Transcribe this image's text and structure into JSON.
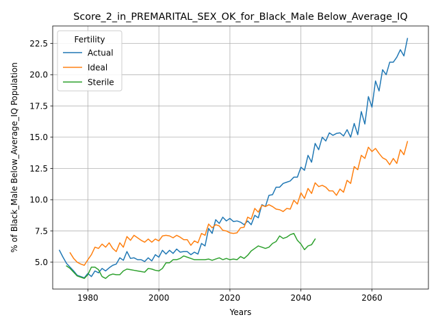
{
  "chart_data": {
    "type": "line",
    "title": "Score_2_in_PREMARITAL_SEX_OK_for_Black_Male Below_Average_IQ",
    "xlabel": "Years",
    "ylabel": "% of Black_Male Below_Average_IQ Population",
    "xlim": [
      1970.1,
      2075.9
    ],
    "ylim": [
      2.85,
      23.9
    ],
    "x_ticks": [
      1980,
      2000,
      2020,
      2040,
      2060
    ],
    "y_ticks": [
      5.0,
      7.5,
      10.0,
      12.5,
      15.0,
      17.5,
      20.0,
      22.5
    ],
    "x_tick_labels": [
      "1980",
      "2000",
      "2020",
      "2040",
      "2060"
    ],
    "y_tick_labels": [
      "5.0",
      "7.5",
      "10.0",
      "12.5",
      "15.0",
      "17.5",
      "20.0",
      "22.5"
    ],
    "grid": true,
    "legend": {
      "title": "Fertility",
      "location": "upper-left"
    },
    "series": [
      {
        "name": "Actual",
        "color": "#1f77b4",
        "x": [
          1972,
          1973,
          1974,
          1975,
          1976,
          1977,
          1978,
          1979,
          1980,
          1981,
          1982,
          1983,
          1984,
          1985,
          1986,
          1987,
          1988,
          1989,
          1990,
          1991,
          1992,
          1993,
          1994,
          1995,
          1996,
          1997,
          1998,
          1999,
          2000,
          2001,
          2002,
          2003,
          2004,
          2005,
          2006,
          2007,
          2008,
          2009,
          2010,
          2011,
          2012,
          2013,
          2014,
          2015,
          2016,
          2017,
          2018,
          2019,
          2020,
          2021,
          2022,
          2023,
          2024,
          2025,
          2026,
          2027,
          2028,
          2029,
          2030,
          2031,
          2032,
          2033,
          2034,
          2035,
          2036,
          2037,
          2038,
          2039,
          2040,
          2041,
          2042,
          2043,
          2044,
          2045,
          2046,
          2047,
          2048,
          2049,
          2050,
          2051,
          2052,
          2053,
          2054,
          2055,
          2056,
          2057,
          2058,
          2059,
          2060,
          2061,
          2062,
          2063,
          2064,
          2065,
          2066,
          2067,
          2068,
          2069,
          2070
        ],
        "values": [
          5.95,
          5.4,
          4.9,
          4.6,
          4.3,
          3.95,
          3.85,
          3.75,
          4.1,
          3.85,
          4.3,
          4.15,
          4.5,
          4.3,
          4.55,
          4.75,
          4.85,
          5.35,
          5.15,
          5.85,
          5.3,
          5.35,
          5.2,
          5.2,
          5.05,
          5.35,
          5.1,
          5.6,
          5.4,
          5.95,
          5.65,
          5.95,
          5.7,
          6.05,
          5.8,
          5.85,
          5.85,
          5.6,
          5.8,
          5.65,
          6.5,
          6.3,
          7.7,
          7.3,
          8.4,
          8.1,
          8.6,
          8.3,
          8.5,
          8.25,
          8.3,
          8.2,
          8.0,
          8.3,
          8.0,
          8.75,
          8.55,
          9.6,
          9.45,
          10.35,
          10.4,
          11.0,
          11.0,
          11.3,
          11.4,
          11.5,
          11.8,
          11.8,
          12.6,
          12.35,
          13.55,
          13.0,
          14.5,
          14.0,
          15.0,
          14.7,
          15.35,
          15.15,
          15.3,
          15.35,
          15.1,
          15.6,
          15.0,
          16.1,
          15.2,
          17.05,
          16.05,
          18.25,
          17.4,
          19.5,
          18.7,
          20.4,
          20.0,
          21.0,
          21.0,
          21.4,
          22.0,
          21.5,
          22.9
        ]
      },
      {
        "name": "Ideal",
        "color": "#ff7f0e",
        "x": [
          1975,
          1976,
          1977,
          1978,
          1979,
          1980,
          1981,
          1982,
          1983,
          1984,
          1985,
          1986,
          1987,
          1988,
          1989,
          1990,
          1991,
          1992,
          1993,
          1994,
          1995,
          1996,
          1997,
          1998,
          1999,
          2000,
          2001,
          2002,
          2003,
          2004,
          2005,
          2006,
          2007,
          2008,
          2009,
          2010,
          2011,
          2012,
          2013,
          2014,
          2015,
          2016,
          2017,
          2018,
          2019,
          2020,
          2021,
          2022,
          2023,
          2024,
          2025,
          2026,
          2027,
          2028,
          2029,
          2030,
          2031,
          2032,
          2033,
          2034,
          2035,
          2036,
          2037,
          2038,
          2039,
          2040,
          2041,
          2042,
          2043,
          2044,
          2045,
          2046,
          2047,
          2048,
          2049,
          2050,
          2051,
          2052,
          2053,
          2054,
          2055,
          2056,
          2057,
          2058,
          2059,
          2060,
          2061,
          2062,
          2063,
          2064,
          2065,
          2066,
          2067,
          2068,
          2069,
          2070
        ],
        "values": [
          5.75,
          5.3,
          5.0,
          4.85,
          4.75,
          5.2,
          5.6,
          6.2,
          6.1,
          6.45,
          6.2,
          6.55,
          6.1,
          5.85,
          6.55,
          6.2,
          7.05,
          6.75,
          7.15,
          6.95,
          6.75,
          6.6,
          6.85,
          6.6,
          6.85,
          6.7,
          7.1,
          7.15,
          7.1,
          6.95,
          7.15,
          7.0,
          6.8,
          6.8,
          6.35,
          6.7,
          6.55,
          7.3,
          7.15,
          8.05,
          7.75,
          8.0,
          7.9,
          7.55,
          7.5,
          7.35,
          7.3,
          7.35,
          7.75,
          7.8,
          8.6,
          8.45,
          9.3,
          9.0,
          9.55,
          9.45,
          9.6,
          9.45,
          9.25,
          9.2,
          9.05,
          9.3,
          9.25,
          9.95,
          9.65,
          10.55,
          10.1,
          10.9,
          10.5,
          11.35,
          11.05,
          11.15,
          11.0,
          10.7,
          10.7,
          10.35,
          10.85,
          10.6,
          11.55,
          11.3,
          12.65,
          12.4,
          13.55,
          13.3,
          14.2,
          13.85,
          14.1,
          13.7,
          13.35,
          13.2,
          12.8,
          13.3,
          12.9,
          14.0,
          13.6,
          14.65
        ]
      },
      {
        "name": "Sterile",
        "color": "#2ca02c",
        "x": [
          1974,
          1975,
          1976,
          1977,
          1978,
          1979,
          1980,
          1981,
          1982,
          1983,
          1984,
          1985,
          1986,
          1987,
          1988,
          1989,
          1990,
          1991,
          1992,
          1993,
          1994,
          1995,
          1996,
          1997,
          1998,
          1999,
          2000,
          2001,
          2002,
          2003,
          2004,
          2005,
          2006,
          2007,
          2008,
          2009,
          2010,
          2011,
          2012,
          2013,
          2014,
          2015,
          2016,
          2017,
          2018,
          2019,
          2020,
          2021,
          2022,
          2023,
          2024,
          2025,
          2026,
          2027,
          2028,
          2029,
          2030,
          2031,
          2032,
          2033,
          2034,
          2035,
          2036,
          2037,
          2038,
          2039,
          2040,
          2041,
          2042,
          2043,
          2044
        ],
        "values": [
          4.7,
          4.5,
          4.2,
          3.9,
          3.8,
          3.7,
          4.0,
          4.6,
          4.6,
          4.4,
          3.85,
          3.7,
          3.95,
          4.05,
          4.0,
          4.0,
          4.3,
          4.45,
          4.4,
          4.35,
          4.3,
          4.25,
          4.2,
          4.5,
          4.45,
          4.35,
          4.3,
          4.5,
          4.95,
          4.95,
          5.2,
          5.2,
          5.3,
          5.5,
          5.4,
          5.3,
          5.2,
          5.2,
          5.2,
          5.2,
          5.25,
          5.15,
          5.25,
          5.35,
          5.2,
          5.3,
          5.2,
          5.25,
          5.2,
          5.45,
          5.3,
          5.55,
          5.9,
          6.1,
          6.3,
          6.2,
          6.1,
          6.2,
          6.5,
          6.65,
          7.1,
          6.9,
          7.0,
          7.2,
          7.3,
          6.75,
          6.45,
          6.0,
          6.3,
          6.4,
          6.85
        ]
      }
    ]
  }
}
